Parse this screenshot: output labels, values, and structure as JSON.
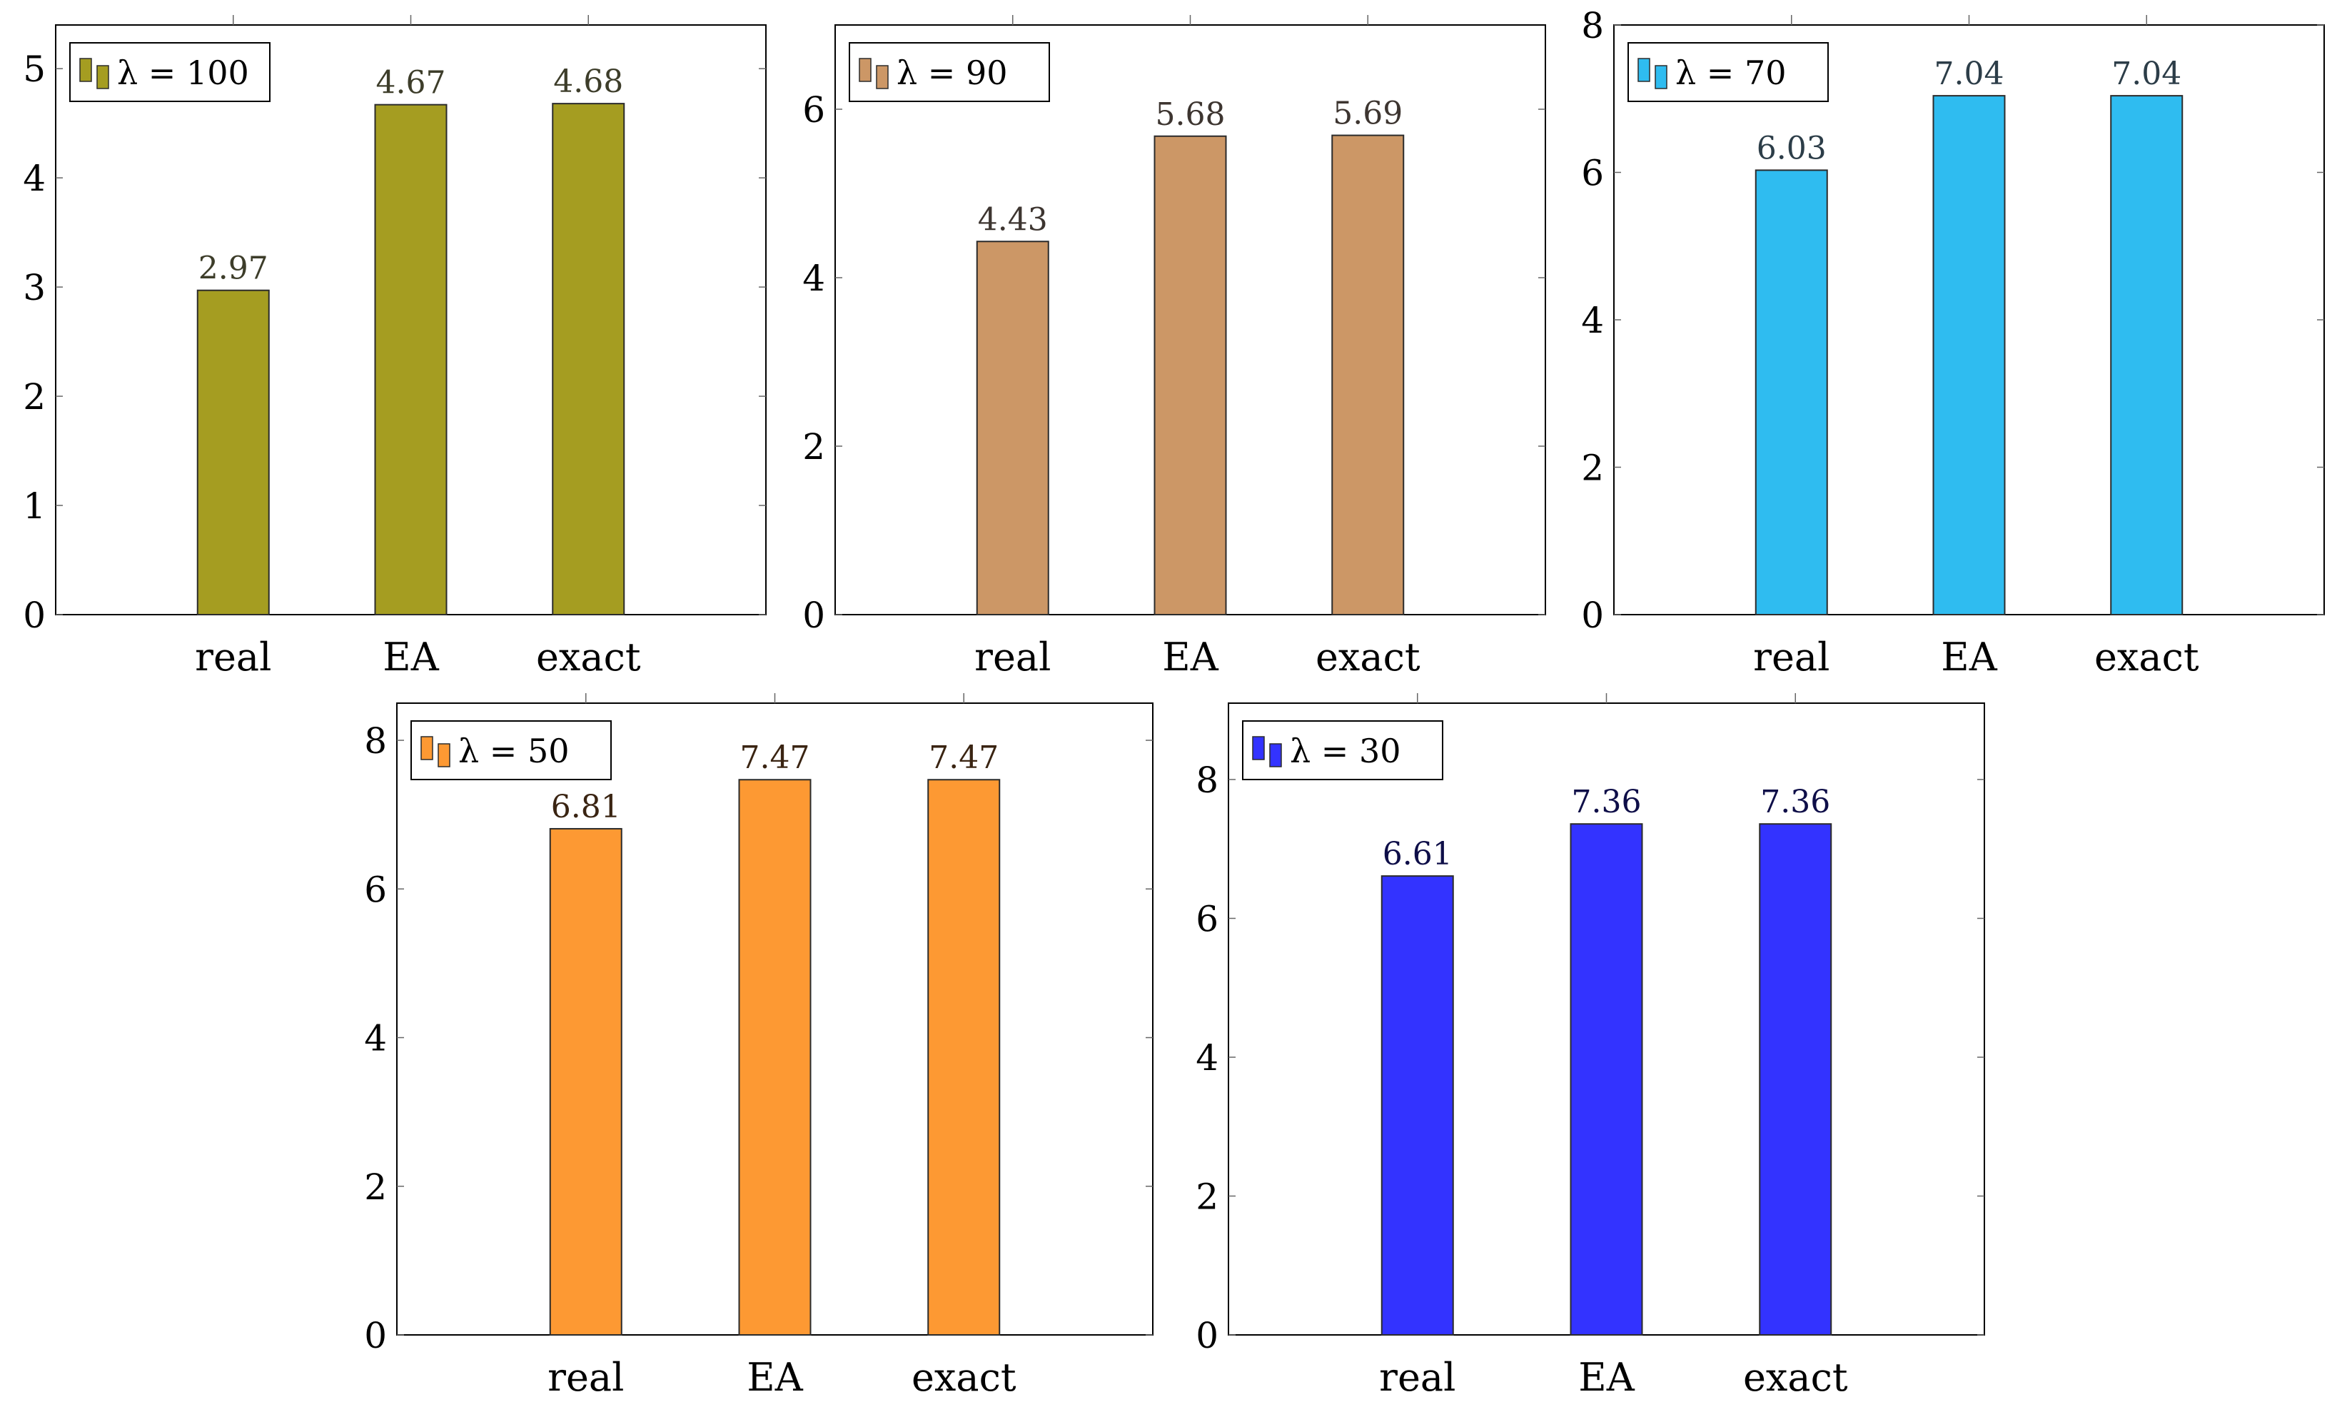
{
  "chart_data": [
    {
      "type": "bar",
      "categories": [
        "real",
        "EA",
        "exact"
      ],
      "values": [
        2.97,
        4.67,
        4.68
      ],
      "labels": [
        "2.97",
        "4.67",
        "4.68"
      ],
      "legend": "λ = 100",
      "yticks": [
        "0",
        "1",
        "2",
        "3",
        "4",
        "5"
      ],
      "ylim": [
        0,
        5.4
      ],
      "color": "#a59d21",
      "label_color": "#3d3d2a",
      "legend_position": "top-left",
      "grid": false
    },
    {
      "type": "bar",
      "categories": [
        "real",
        "EA",
        "exact"
      ],
      "values": [
        4.43,
        5.68,
        5.69
      ],
      "labels": [
        "4.43",
        "5.68",
        "5.69"
      ],
      "legend": "λ = 90",
      "yticks": [
        "0",
        "2",
        "4",
        "6"
      ],
      "ylim": [
        0,
        7
      ],
      "color": "#cc9766",
      "label_color": "#3d3530",
      "legend_position": "top-left",
      "grid": false
    },
    {
      "type": "bar",
      "categories": [
        "real",
        "EA",
        "exact"
      ],
      "values": [
        6.03,
        7.04,
        7.04
      ],
      "labels": [
        "6.03",
        "7.04",
        "7.04"
      ],
      "legend": "λ = 70",
      "yticks": [
        "0",
        "2",
        "4",
        "6",
        "8"
      ],
      "ylim": [
        0,
        8
      ],
      "color": "#2fbcf0",
      "label_color": "#2c3d48",
      "legend_position": "top-left",
      "grid": false
    },
    {
      "type": "bar",
      "categories": [
        "real",
        "EA",
        "exact"
      ],
      "values": [
        6.81,
        7.47,
        7.47
      ],
      "labels": [
        "6.81",
        "7.47",
        "7.47"
      ],
      "legend": "λ = 50",
      "yticks": [
        "0",
        "2",
        "4",
        "6",
        "8"
      ],
      "ylim": [
        0,
        8.5
      ],
      "color": "#fd9933",
      "label_color": "#3a2412",
      "legend_position": "top-left",
      "grid": false
    },
    {
      "type": "bar",
      "categories": [
        "real",
        "EA",
        "exact"
      ],
      "values": [
        6.61,
        7.36,
        7.36
      ],
      "labels": [
        "6.61",
        "7.36",
        "7.36"
      ],
      "legend": "λ = 30",
      "yticks": [
        "0",
        "2",
        "4",
        "6",
        "8"
      ],
      "ylim": [
        0,
        9.1
      ],
      "color": "#3333ff",
      "label_color": "#0e0e48",
      "legend_position": "top-left",
      "grid": false
    }
  ]
}
